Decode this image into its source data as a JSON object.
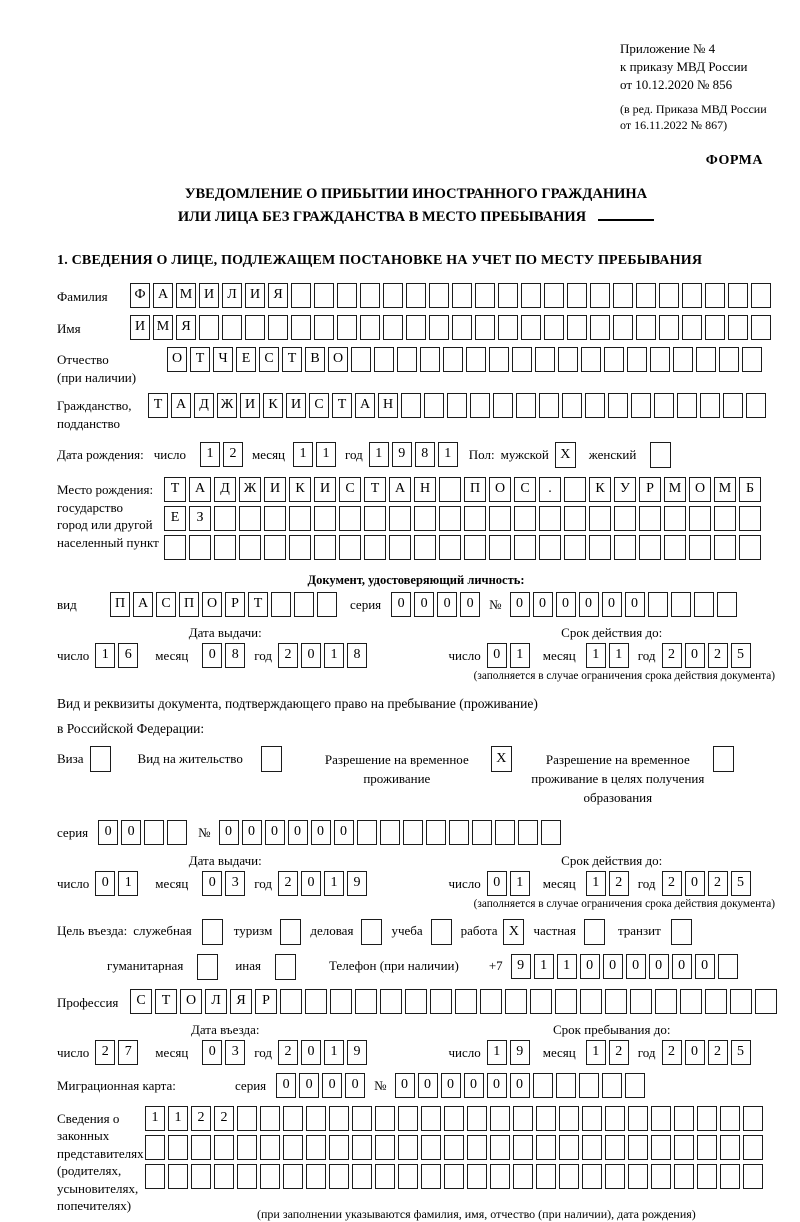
{
  "meta": {
    "appendix_line1": "Приложение № 4",
    "appendix_line2": "к приказу МВД России",
    "appendix_line3": "от 10.12.2020 № 856",
    "edition_line1": "(в ред. Приказа МВД России",
    "edition_line2": "от 16.11.2022 № 867)",
    "form_label": "ФОРМА"
  },
  "title": {
    "line1": "УВЕДОМЛЕНИЕ О ПРИБЫТИИ ИНОСТРАННОГО ГРАЖДАНИНА",
    "line2": "ИЛИ ЛИЦА БЕЗ ГРАЖДАНСТВА В МЕСТО ПРЕБЫВАНИЯ"
  },
  "section1_heading": "1. СВЕДЕНИЯ О ЛИЦЕ, ПОДЛЕЖАЩЕМ ПОСТАНОВКЕ НА УЧЕТ ПО МЕСТУ ПРЕБЫВАНИЯ",
  "labels": {
    "day": "число",
    "month": "месяц",
    "year": "год",
    "series": "серия",
    "number_sign": "№"
  },
  "person": {
    "surname": {
      "label": "Фамилия",
      "value": "ФАМИЛИЯ",
      "cells": 28
    },
    "name": {
      "label": "Имя",
      "value": "ИМЯ",
      "cells": 28
    },
    "patronymic": {
      "label1": "Отчество",
      "label2": "(при наличии)",
      "value": "ОТЧЕСТВО",
      "cells": 26
    },
    "citizenship": {
      "label1": "Гражданство,",
      "label2": "подданство",
      "value": "ТАДЖИКИСТАН",
      "cells": 27
    },
    "birth_date": {
      "label": "Дата рождения:",
      "day": {
        "value": "12",
        "cells": 2
      },
      "month": {
        "value": "11",
        "cells": 2
      },
      "year": {
        "value": "1981",
        "cells": 4
      }
    },
    "sex": {
      "label": "Пол:",
      "male_label": "мужской",
      "male_checked": "X",
      "female_label": "женский",
      "female_checked": ""
    },
    "birth_place": {
      "label1": "Место рождения:",
      "label2": "государство",
      "label3": "город или другой",
      "label4": "населенный пункт",
      "row1": {
        "value": "ТАДЖИКИСТАН ПОС. КУРМОМБ",
        "cells": 24
      },
      "row2": {
        "value": "ЕЗ",
        "cells": 24
      },
      "row3": {
        "value": "",
        "cells": 24
      }
    }
  },
  "identity_doc": {
    "heading": "Документ, удостоверяющий личность:",
    "kind_label": "вид",
    "kind": {
      "value": "ПАСПОРТ",
      "cells": 10
    },
    "series": {
      "value": "0000",
      "cells": 4
    },
    "number": {
      "value": "000000",
      "cells": 10
    },
    "issue_header": "Дата выдачи:",
    "issue": {
      "day": {
        "value": "16",
        "cells": 2
      },
      "month": {
        "value": "08",
        "cells": 2
      },
      "year": {
        "value": "2018",
        "cells": 4
      }
    },
    "expiry_header": "Срок действия до:",
    "expiry": {
      "day": {
        "value": "01",
        "cells": 2
      },
      "month": {
        "value": "11",
        "cells": 2
      },
      "year": {
        "value": "2025",
        "cells": 4
      }
    },
    "expiry_note": "(заполняется в случае ограничения срока действия документа)"
  },
  "residence_doc": {
    "intro_line1": "Вид и реквизиты документа, подтверждающего право на пребывание (проживание)",
    "intro_line2": "в Российской Федерации:",
    "visa_label": "Виза",
    "visa_checked": "",
    "residence_permit_label": "Вид на жительство",
    "residence_permit_checked": "",
    "temp_residence_label": "Разрешение на временное проживание",
    "temp_residence_checked": "X",
    "temp_residence_edu_label": "Разрешение на временное проживание в целях получения образования",
    "temp_residence_edu_checked": "",
    "series": {
      "value": "00",
      "cells": 4
    },
    "number": {
      "value": "000000",
      "cells": 15
    },
    "issue_header": "Дата выдачи:",
    "issue": {
      "day": {
        "value": "01",
        "cells": 2
      },
      "month": {
        "value": "03",
        "cells": 2
      },
      "year": {
        "value": "2019",
        "cells": 4
      }
    },
    "expiry_header": "Срок действия до:",
    "expiry": {
      "day": {
        "value": "01",
        "cells": 2
      },
      "month": {
        "value": "12",
        "cells": 2
      },
      "year": {
        "value": "2025",
        "cells": 4
      }
    },
    "expiry_note": "(заполняется в случае ограничения срока действия документа)"
  },
  "visit": {
    "purpose_label": "Цель въезда:",
    "purposes": [
      {
        "label": "служебная",
        "checked": ""
      },
      {
        "label": "туризм",
        "checked": ""
      },
      {
        "label": "деловая",
        "checked": ""
      },
      {
        "label": "учеба",
        "checked": ""
      },
      {
        "label": "работа",
        "checked": "X"
      },
      {
        "label": "частная",
        "checked": ""
      },
      {
        "label": "транзит",
        "checked": ""
      },
      {
        "label": "гуманитарная",
        "checked": ""
      },
      {
        "label": "иная",
        "checked": ""
      }
    ],
    "phone_label": "Телефон (при наличии)",
    "phone_prefix": "+7",
    "phone": {
      "value": "911000000",
      "cells": 10
    },
    "profession_label": "Профессия",
    "profession": {
      "value": "СТОЛЯР",
      "cells": 26
    },
    "entry_header": "Дата въезда:",
    "entry": {
      "day": {
        "value": "27",
        "cells": 2
      },
      "month": {
        "value": "03",
        "cells": 2
      },
      "year": {
        "value": "2019",
        "cells": 4
      }
    },
    "stay_header": "Срок пребывания до:",
    "stay": {
      "day": {
        "value": "19",
        "cells": 2
      },
      "month": {
        "value": "12",
        "cells": 2
      },
      "year": {
        "value": "2025",
        "cells": 4
      }
    },
    "migration_card_label": "Миграционная карта:",
    "migration_series": {
      "value": "0000",
      "cells": 4
    },
    "migration_number": {
      "value": "000000",
      "cells": 11
    }
  },
  "representatives": {
    "label1": "Сведения о",
    "label2": "законных",
    "label3": "представителях",
    "label4": "(родителях,",
    "label5": "усыновителях,",
    "label6": "попечителях)",
    "row1": {
      "value": "1122",
      "cells": 27
    },
    "row2": {
      "value": "",
      "cells": 27
    },
    "row3": {
      "value": "",
      "cells": 27
    },
    "note": "(при заполнении указываются фамилия, имя, отчество (при наличии), дата рождения)"
  }
}
